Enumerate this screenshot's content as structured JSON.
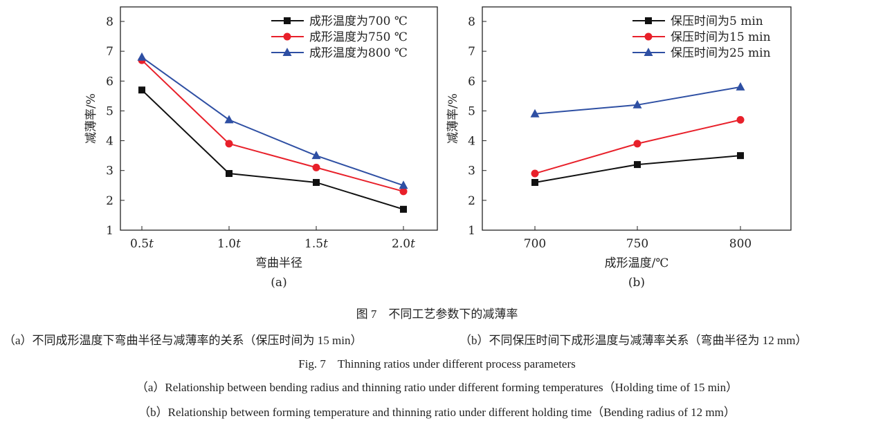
{
  "chart_data": [
    {
      "type": "line",
      "panel_label": "(a)",
      "xlabel": "弯曲半径",
      "ylabel": "减薄率/%",
      "categories": [
        "0.5t",
        "1.0t",
        "1.5t",
        "2.0t"
      ],
      "ylim": [
        1,
        8
      ],
      "yticks": [
        1,
        2,
        3,
        4,
        5,
        6,
        7,
        8
      ],
      "grid": false,
      "legend": "top-right",
      "series": [
        {
          "name": "成形温度为700 ℃",
          "color": "#111111",
          "marker": "square",
          "values": [
            5.7,
            2.9,
            2.6,
            1.7
          ]
        },
        {
          "name": "成形温度为750 ℃",
          "color": "#e8202a",
          "marker": "circle",
          "values": [
            6.7,
            3.9,
            3.1,
            2.3
          ]
        },
        {
          "name": "成形温度为800 ℃",
          "color": "#2e4fa3",
          "marker": "triangle",
          "values": [
            6.8,
            4.7,
            3.5,
            2.5
          ]
        }
      ]
    },
    {
      "type": "line",
      "panel_label": "(b)",
      "xlabel": "成形温度/℃",
      "ylabel": "减薄率/%",
      "categories": [
        "700",
        "750",
        "800"
      ],
      "ylim": [
        1,
        8
      ],
      "yticks": [
        1,
        2,
        3,
        4,
        5,
        6,
        7,
        8
      ],
      "grid": false,
      "legend": "top-right",
      "series": [
        {
          "name": "保压时间为5 min",
          "color": "#111111",
          "marker": "square",
          "values": [
            2.6,
            3.2,
            3.5
          ]
        },
        {
          "name": "保压时间为15 min",
          "color": "#e8202a",
          "marker": "circle",
          "values": [
            2.9,
            3.9,
            4.7
          ]
        },
        {
          "name": "保压时间为25 min",
          "color": "#2e4fa3",
          "marker": "triangle",
          "values": [
            4.9,
            5.2,
            5.8
          ]
        }
      ]
    }
  ],
  "caption": {
    "cn_title": "图 7　不同工艺参数下的减薄率",
    "cn_a": "（a）不同成形温度下弯曲半径与减薄率的关系（保压时间为 15 min）",
    "cn_b": "（b）不同保压时间下成形温度与减薄率关系（弯曲半径为 12 mm）",
    "en_title": "Fig. 7　Thinning ratios under different process parameters",
    "en_a": "（a）Relationship between bending radius and thinning ratio under different forming temperatures（Holding time of 15 min）",
    "en_b": "（b）Relationship between forming temperature and thinning ratio under different holding time（Bending radius of 12 mm）"
  }
}
